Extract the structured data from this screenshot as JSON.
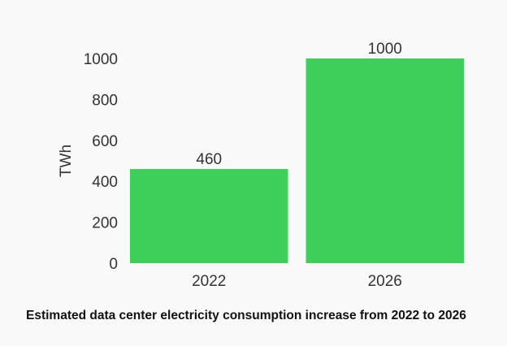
{
  "chart_data": {
    "type": "bar",
    "title": "Estimated data center electricity consumption increase from 2022 to 2026",
    "xlabel": "",
    "ylabel": "TWh",
    "categories": [
      "2022",
      "2026"
    ],
    "values": [
      460,
      1000
    ],
    "data_labels": [
      "460",
      "1000"
    ],
    "ylim": [
      0,
      1000
    ],
    "yticks": [
      0,
      200,
      400,
      600,
      800,
      1000
    ],
    "ytick_labels": [
      "0",
      "200",
      "400",
      "600",
      "800",
      "1000"
    ],
    "grid": false,
    "legend": "none",
    "colors": {
      "bar": "#3ecf5a",
      "text": "#333333",
      "background": "#f9f9f9"
    }
  }
}
